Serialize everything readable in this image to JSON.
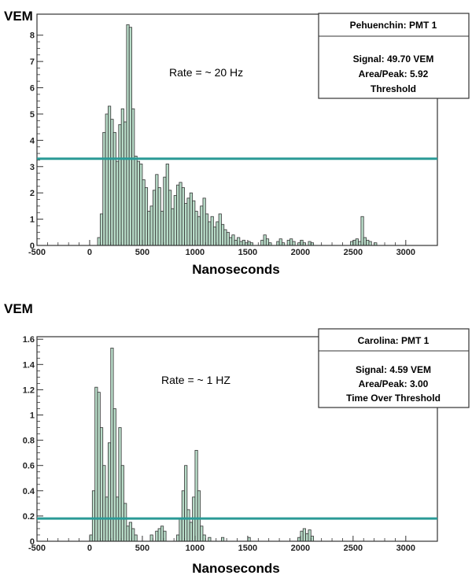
{
  "chart_data": [
    {
      "type": "histogram",
      "ylabel": "VEM",
      "xlabel": "Nanoseconds",
      "xlim": [
        -500,
        3300
      ],
      "ylim": [
        0,
        8.8
      ],
      "x_ticks": [
        -500,
        0,
        500,
        1000,
        1500,
        2000,
        2500,
        3000
      ],
      "y_ticks": [
        0,
        1,
        2,
        3,
        4,
        5,
        6,
        7,
        8
      ],
      "annotation": "Rate = ~ 20 Hz",
      "threshold": 3.3,
      "stats_box": {
        "title": "Pehuenchin: PMT 1",
        "lines": [
          "Signal: 49.70 VEM",
          "Area/Peak: 5.92",
          "Threshold"
        ]
      },
      "fill_color": "#b8dcc8",
      "threshold_color": "#2a9a96",
      "bin_width": 25,
      "bins": [
        [
          75,
          0.3
        ],
        [
          100,
          1.2
        ],
        [
          125,
          4.3
        ],
        [
          150,
          5.0
        ],
        [
          175,
          5.3
        ],
        [
          200,
          4.8
        ],
        [
          225,
          4.3
        ],
        [
          250,
          3.2
        ],
        [
          275,
          4.6
        ],
        [
          300,
          5.2
        ],
        [
          325,
          4.7
        ],
        [
          350,
          8.4
        ],
        [
          375,
          8.3
        ],
        [
          400,
          5.2
        ],
        [
          425,
          3.4
        ],
        [
          450,
          3.2
        ],
        [
          475,
          3.1
        ],
        [
          500,
          2.5
        ],
        [
          525,
          2.2
        ],
        [
          550,
          1.3
        ],
        [
          575,
          1.5
        ],
        [
          600,
          2.1
        ],
        [
          625,
          2.7
        ],
        [
          650,
          2.2
        ],
        [
          675,
          1.3
        ],
        [
          700,
          2.6
        ],
        [
          725,
          3.1
        ],
        [
          750,
          2.1
        ],
        [
          775,
          1.4
        ],
        [
          800,
          1.9
        ],
        [
          825,
          2.3
        ],
        [
          850,
          2.4
        ],
        [
          875,
          2.2
        ],
        [
          900,
          1.6
        ],
        [
          925,
          1.8
        ],
        [
          950,
          2.0
        ],
        [
          975,
          1.7
        ],
        [
          1000,
          1.3
        ],
        [
          1025,
          1.1
        ],
        [
          1050,
          1.5
        ],
        [
          1075,
          1.8
        ],
        [
          1100,
          1.2
        ],
        [
          1125,
          0.9
        ],
        [
          1150,
          1.1
        ],
        [
          1175,
          0.7
        ],
        [
          1200,
          0.9
        ],
        [
          1225,
          1.2
        ],
        [
          1250,
          0.8
        ],
        [
          1275,
          0.6
        ],
        [
          1300,
          0.5
        ],
        [
          1325,
          0.3
        ],
        [
          1350,
          0.4
        ],
        [
          1375,
          0.2
        ],
        [
          1400,
          0.3
        ],
        [
          1425,
          0.15
        ],
        [
          1450,
          0.2
        ],
        [
          1475,
          0.1
        ],
        [
          1500,
          0.15
        ],
        [
          1525,
          0.1
        ],
        [
          1625,
          0.2
        ],
        [
          1650,
          0.4
        ],
        [
          1675,
          0.25
        ],
        [
          1700,
          0.1
        ],
        [
          1775,
          0.15
        ],
        [
          1800,
          0.25
        ],
        [
          1825,
          0.1
        ],
        [
          1875,
          0.2
        ],
        [
          1900,
          0.25
        ],
        [
          1925,
          0.15
        ],
        [
          1975,
          0.1
        ],
        [
          2000,
          0.2
        ],
        [
          2025,
          0.1
        ],
        [
          2075,
          0.15
        ],
        [
          2100,
          0.1
        ],
        [
          2475,
          0.15
        ],
        [
          2500,
          0.2
        ],
        [
          2525,
          0.25
        ],
        [
          2550,
          0.15
        ],
        [
          2575,
          1.1
        ],
        [
          2600,
          0.3
        ],
        [
          2625,
          0.2
        ],
        [
          2650,
          0.15
        ],
        [
          2700,
          0.1
        ]
      ]
    },
    {
      "type": "histogram",
      "ylabel": "VEM",
      "xlabel": "Nanoseconds",
      "xlim": [
        -500,
        3300
      ],
      "ylim": [
        0,
        1.62
      ],
      "x_ticks": [
        -500,
        0,
        500,
        1000,
        1500,
        2000,
        2500,
        3000
      ],
      "y_ticks": [
        0,
        0.2,
        0.4,
        0.6,
        0.8,
        1,
        1.2,
        1.4,
        1.6
      ],
      "y_tick_labels": [
        "0",
        "0.2",
        "0.4",
        "0.6",
        "0.8",
        "1",
        "1.2",
        "1.4",
        "1.6"
      ],
      "annotation": "Rate = ~ 1 HZ",
      "threshold": 0.18,
      "stats_box": {
        "title": "Carolina: PMT 1",
        "lines": [
          "Signal: 4.59 VEM",
          "Area/Peak: 3.00",
          "Time Over Threshold"
        ]
      },
      "fill_color": "#b8dcc8",
      "threshold_color": "#2a9a96",
      "bin_width": 25,
      "bins": [
        [
          0,
          0.05
        ],
        [
          25,
          0.4
        ],
        [
          50,
          1.22
        ],
        [
          75,
          1.18
        ],
        [
          100,
          0.9
        ],
        [
          125,
          0.6
        ],
        [
          150,
          0.35
        ],
        [
          175,
          0.78
        ],
        [
          200,
          1.53
        ],
        [
          225,
          1.05
        ],
        [
          250,
          0.35
        ],
        [
          275,
          0.9
        ],
        [
          300,
          0.6
        ],
        [
          325,
          0.3
        ],
        [
          350,
          0.12
        ],
        [
          375,
          0.15
        ],
        [
          400,
          0.1
        ],
        [
          425,
          0.05
        ],
        [
          575,
          0.05
        ],
        [
          625,
          0.08
        ],
        [
          650,
          0.1
        ],
        [
          675,
          0.12
        ],
        [
          700,
          0.08
        ],
        [
          825,
          0.05
        ],
        [
          850,
          0.18
        ],
        [
          875,
          0.4
        ],
        [
          900,
          0.6
        ],
        [
          925,
          0.25
        ],
        [
          950,
          0.15
        ],
        [
          975,
          0.35
        ],
        [
          1000,
          0.72
        ],
        [
          1025,
          0.4
        ],
        [
          1050,
          0.12
        ],
        [
          1075,
          0.05
        ],
        [
          1125,
          0.03
        ],
        [
          1250,
          0.03
        ],
        [
          1500,
          0.03
        ],
        [
          1975,
          0.03
        ],
        [
          2000,
          0.08
        ],
        [
          2025,
          0.1
        ],
        [
          2050,
          0.06
        ],
        [
          2075,
          0.09
        ],
        [
          2100,
          0.04
        ]
      ]
    }
  ]
}
